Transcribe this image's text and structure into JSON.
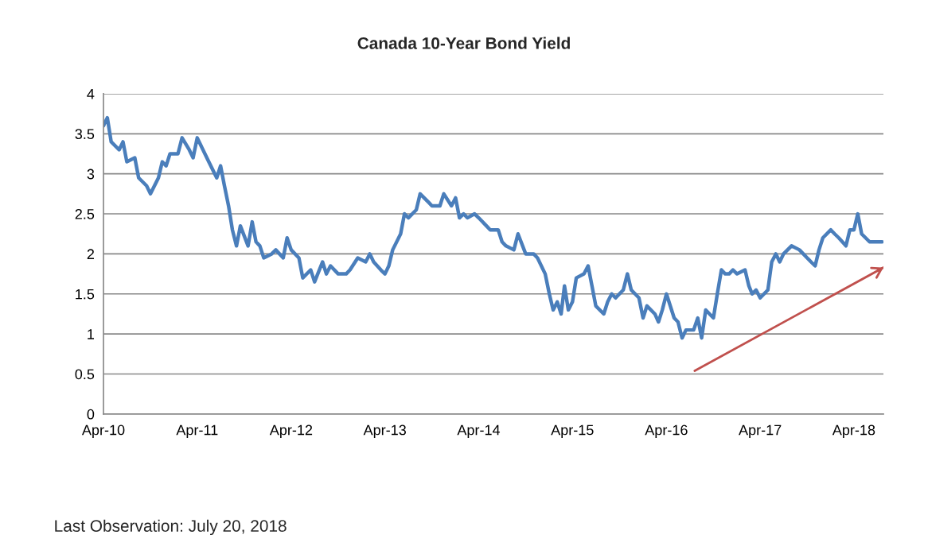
{
  "chart_data": {
    "type": "line",
    "title": "Canada 10-Year Bond Yield",
    "x": [
      "2010-04-01",
      "2010-04-16",
      "2010-05-01",
      "2010-06-01",
      "2010-06-16",
      "2010-07-01",
      "2010-08-01",
      "2010-08-16",
      "2010-09-16",
      "2010-10-01",
      "2010-11-01",
      "2010-11-16",
      "2010-12-01",
      "2010-12-16",
      "2011-01-16",
      "2011-02-01",
      "2011-03-01",
      "2011-03-16",
      "2011-04-01",
      "2011-05-01",
      "2011-05-16",
      "2011-06-16",
      "2011-07-01",
      "2011-07-16",
      "2011-08-01",
      "2011-08-16",
      "2011-09-01",
      "2011-09-16",
      "2011-10-16",
      "2011-11-01",
      "2011-11-16",
      "2011-12-01",
      "2011-12-16",
      "2012-01-16",
      "2012-02-01",
      "2012-03-01",
      "2012-03-16",
      "2012-04-01",
      "2012-05-01",
      "2012-05-16",
      "2012-06-16",
      "2012-07-01",
      "2012-08-01",
      "2012-08-16",
      "2012-09-01",
      "2012-10-01",
      "2012-11-01",
      "2012-11-16",
      "2012-12-16",
      "2013-01-16",
      "2013-02-01",
      "2013-02-16",
      "2013-03-16",
      "2013-04-01",
      "2013-04-16",
      "2013-05-01",
      "2013-06-01",
      "2013-06-16",
      "2013-07-01",
      "2013-08-01",
      "2013-08-16",
      "2013-09-16",
      "2013-10-01",
      "2013-11-01",
      "2013-11-16",
      "2013-12-16",
      "2014-01-01",
      "2014-01-16",
      "2014-02-01",
      "2014-02-16",
      "2014-03-16",
      "2014-04-01",
      "2014-05-01",
      "2014-05-16",
      "2014-06-16",
      "2014-07-01",
      "2014-07-16",
      "2014-08-16",
      "2014-09-01",
      "2014-10-01",
      "2014-11-01",
      "2014-11-16",
      "2014-12-16",
      "2015-01-01",
      "2015-01-16",
      "2015-02-01",
      "2015-02-16",
      "2015-03-01",
      "2015-03-16",
      "2015-04-01",
      "2015-04-16",
      "2015-05-16",
      "2015-06-01",
      "2015-06-16",
      "2015-07-01",
      "2015-08-01",
      "2015-08-16",
      "2015-09-01",
      "2015-09-16",
      "2015-10-16",
      "2015-11-01",
      "2015-11-16",
      "2015-12-16",
      "2016-01-01",
      "2016-01-16",
      "2016-02-16",
      "2016-03-01",
      "2016-03-16",
      "2016-04-01",
      "2016-05-01",
      "2016-05-16",
      "2016-06-01",
      "2016-06-16",
      "2016-07-16",
      "2016-08-01",
      "2016-08-16",
      "2016-09-01",
      "2016-10-01",
      "2016-10-16",
      "2016-11-01",
      "2016-11-16",
      "2016-12-01",
      "2016-12-16",
      "2017-01-01",
      "2017-02-01",
      "2017-02-16",
      "2017-03-01",
      "2017-03-16",
      "2017-04-01",
      "2017-05-01",
      "2017-05-16",
      "2017-06-01",
      "2017-06-16",
      "2017-07-01",
      "2017-08-01",
      "2017-09-01",
      "2017-10-01",
      "2017-10-16",
      "2017-11-01",
      "2017-11-16",
      "2017-12-01",
      "2018-01-01",
      "2018-01-16",
      "2018-02-01",
      "2018-03-01",
      "2018-03-16",
      "2018-04-01",
      "2018-04-16",
      "2018-05-01",
      "2018-06-01",
      "2018-07-20"
    ],
    "series": [
      {
        "color": "#4a7ebb",
        "values": [
          3.6,
          3.7,
          3.4,
          3.3,
          3.4,
          3.15,
          3.2,
          2.95,
          2.85,
          2.75,
          2.95,
          3.15,
          3.1,
          3.25,
          3.25,
          3.45,
          3.3,
          3.2,
          3.45,
          3.25,
          3.15,
          2.95,
          3.1,
          2.85,
          2.6,
          2.3,
          2.1,
          2.35,
          2.1,
          2.4,
          2.15,
          2.1,
          1.95,
          2.0,
          2.05,
          1.95,
          2.2,
          2.05,
          1.95,
          1.7,
          1.8,
          1.65,
          1.9,
          1.75,
          1.85,
          1.75,
          1.75,
          1.8,
          1.95,
          1.9,
          2.0,
          1.9,
          1.8,
          1.75,
          1.85,
          2.05,
          2.25,
          2.5,
          2.45,
          2.55,
          2.75,
          2.65,
          2.6,
          2.6,
          2.75,
          2.6,
          2.7,
          2.45,
          2.5,
          2.45,
          2.5,
          2.45,
          2.35,
          2.3,
          2.3,
          2.15,
          2.1,
          2.05,
          2.25,
          2.0,
          2.0,
          1.95,
          1.75,
          1.5,
          1.3,
          1.4,
          1.25,
          1.6,
          1.3,
          1.4,
          1.7,
          1.75,
          1.85,
          1.6,
          1.35,
          1.25,
          1.4,
          1.5,
          1.45,
          1.55,
          1.75,
          1.55,
          1.45,
          1.2,
          1.35,
          1.25,
          1.15,
          1.3,
          1.5,
          1.2,
          1.15,
          0.95,
          1.05,
          1.05,
          1.2,
          0.95,
          1.3,
          1.2,
          1.5,
          1.8,
          1.75,
          1.75,
          1.8,
          1.75,
          1.8,
          1.6,
          1.5,
          1.55,
          1.45,
          1.55,
          1.9,
          2.0,
          1.9,
          2.0,
          2.1,
          2.05,
          1.95,
          1.9,
          1.85,
          2.05,
          2.2,
          2.3,
          2.25,
          2.2,
          2.1,
          2.3,
          2.3,
          2.5,
          2.25,
          2.15,
          2.15
        ]
      },
      {
        "type": "line",
        "color": "#c0504d",
        "x": [
          "2016-07-20",
          "2018-07-25"
        ],
        "values": [
          0.54,
          1.83
        ]
      }
    ],
    "xlim": [
      "2010-04-01",
      "2018-07-25"
    ],
    "xticks": [
      {
        "value": "2010-04-01",
        "label": "Apr-10"
      },
      {
        "value": "2011-04-01",
        "label": "Apr-11"
      },
      {
        "value": "2012-04-01",
        "label": "Apr-12"
      },
      {
        "value": "2013-04-01",
        "label": "Apr-13"
      },
      {
        "value": "2014-04-01",
        "label": "Apr-14"
      },
      {
        "value": "2015-04-01",
        "label": "Apr-15"
      },
      {
        "value": "2016-04-01",
        "label": "Apr-16"
      },
      {
        "value": "2017-04-01",
        "label": "Apr-17"
      },
      {
        "value": "2018-04-01",
        "label": "Apr-18"
      }
    ],
    "ylim": [
      0,
      4
    ],
    "yticks": [
      0,
      0.5,
      1,
      1.5,
      2,
      2.5,
      3,
      3.5,
      4
    ],
    "grid": "y",
    "line_style": "solid",
    "annotations": [
      "Last Observation: July 20, 2018"
    ]
  }
}
